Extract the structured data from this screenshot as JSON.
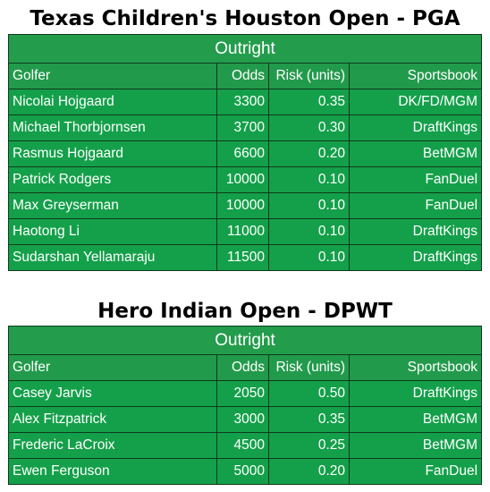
{
  "sections": [
    {
      "title": "Texas Children's Houston Open - PGA",
      "band": "Outright",
      "headers": {
        "golfer": "Golfer",
        "odds": "Odds",
        "risk": "Risk (units)",
        "book": "Sportsbook"
      },
      "rows": [
        {
          "golfer": "Nicolai Hojgaard",
          "odds": "3300",
          "risk": "0.35",
          "book": "DK/FD/MGM"
        },
        {
          "golfer": "Michael Thorbjornsen",
          "odds": "3700",
          "risk": "0.30",
          "book": "DraftKings"
        },
        {
          "golfer": "Rasmus Hojgaard",
          "odds": "6600",
          "risk": "0.20",
          "book": "BetMGM"
        },
        {
          "golfer": "Patrick Rodgers",
          "odds": "10000",
          "risk": "0.10",
          "book": "FanDuel"
        },
        {
          "golfer": "Max Greyserman",
          "odds": "10000",
          "risk": "0.10",
          "book": "FanDuel"
        },
        {
          "golfer": "Haotong Li",
          "odds": "11000",
          "risk": "0.10",
          "book": "DraftKings"
        },
        {
          "golfer": "Sudarshan Yellamaraju",
          "odds": "11500",
          "risk": "0.10",
          "book": "DraftKings"
        }
      ]
    },
    {
      "title": "Hero Indian Open - DPWT",
      "band": "Outright",
      "headers": {
        "golfer": "Golfer",
        "odds": "Odds",
        "risk": "Risk (units)",
        "book": "Sportsbook"
      },
      "rows": [
        {
          "golfer": "Casey Jarvis",
          "odds": "2050",
          "risk": "0.50",
          "book": "DraftKings"
        },
        {
          "golfer": "Alex Fitzpatrick",
          "odds": "3000",
          "risk": "0.35",
          "book": "BetMGM"
        },
        {
          "golfer": "Frederic LaCroix",
          "odds": "4500",
          "risk": "0.25",
          "book": "BetMGM"
        },
        {
          "golfer": "Ewen Ferguson",
          "odds": "5000",
          "risk": "0.20",
          "book": "FanDuel"
        }
      ]
    }
  ],
  "colors": {
    "table_bg": "#14a04a",
    "border": "#0d3a1c",
    "text": "#ffffff"
  }
}
